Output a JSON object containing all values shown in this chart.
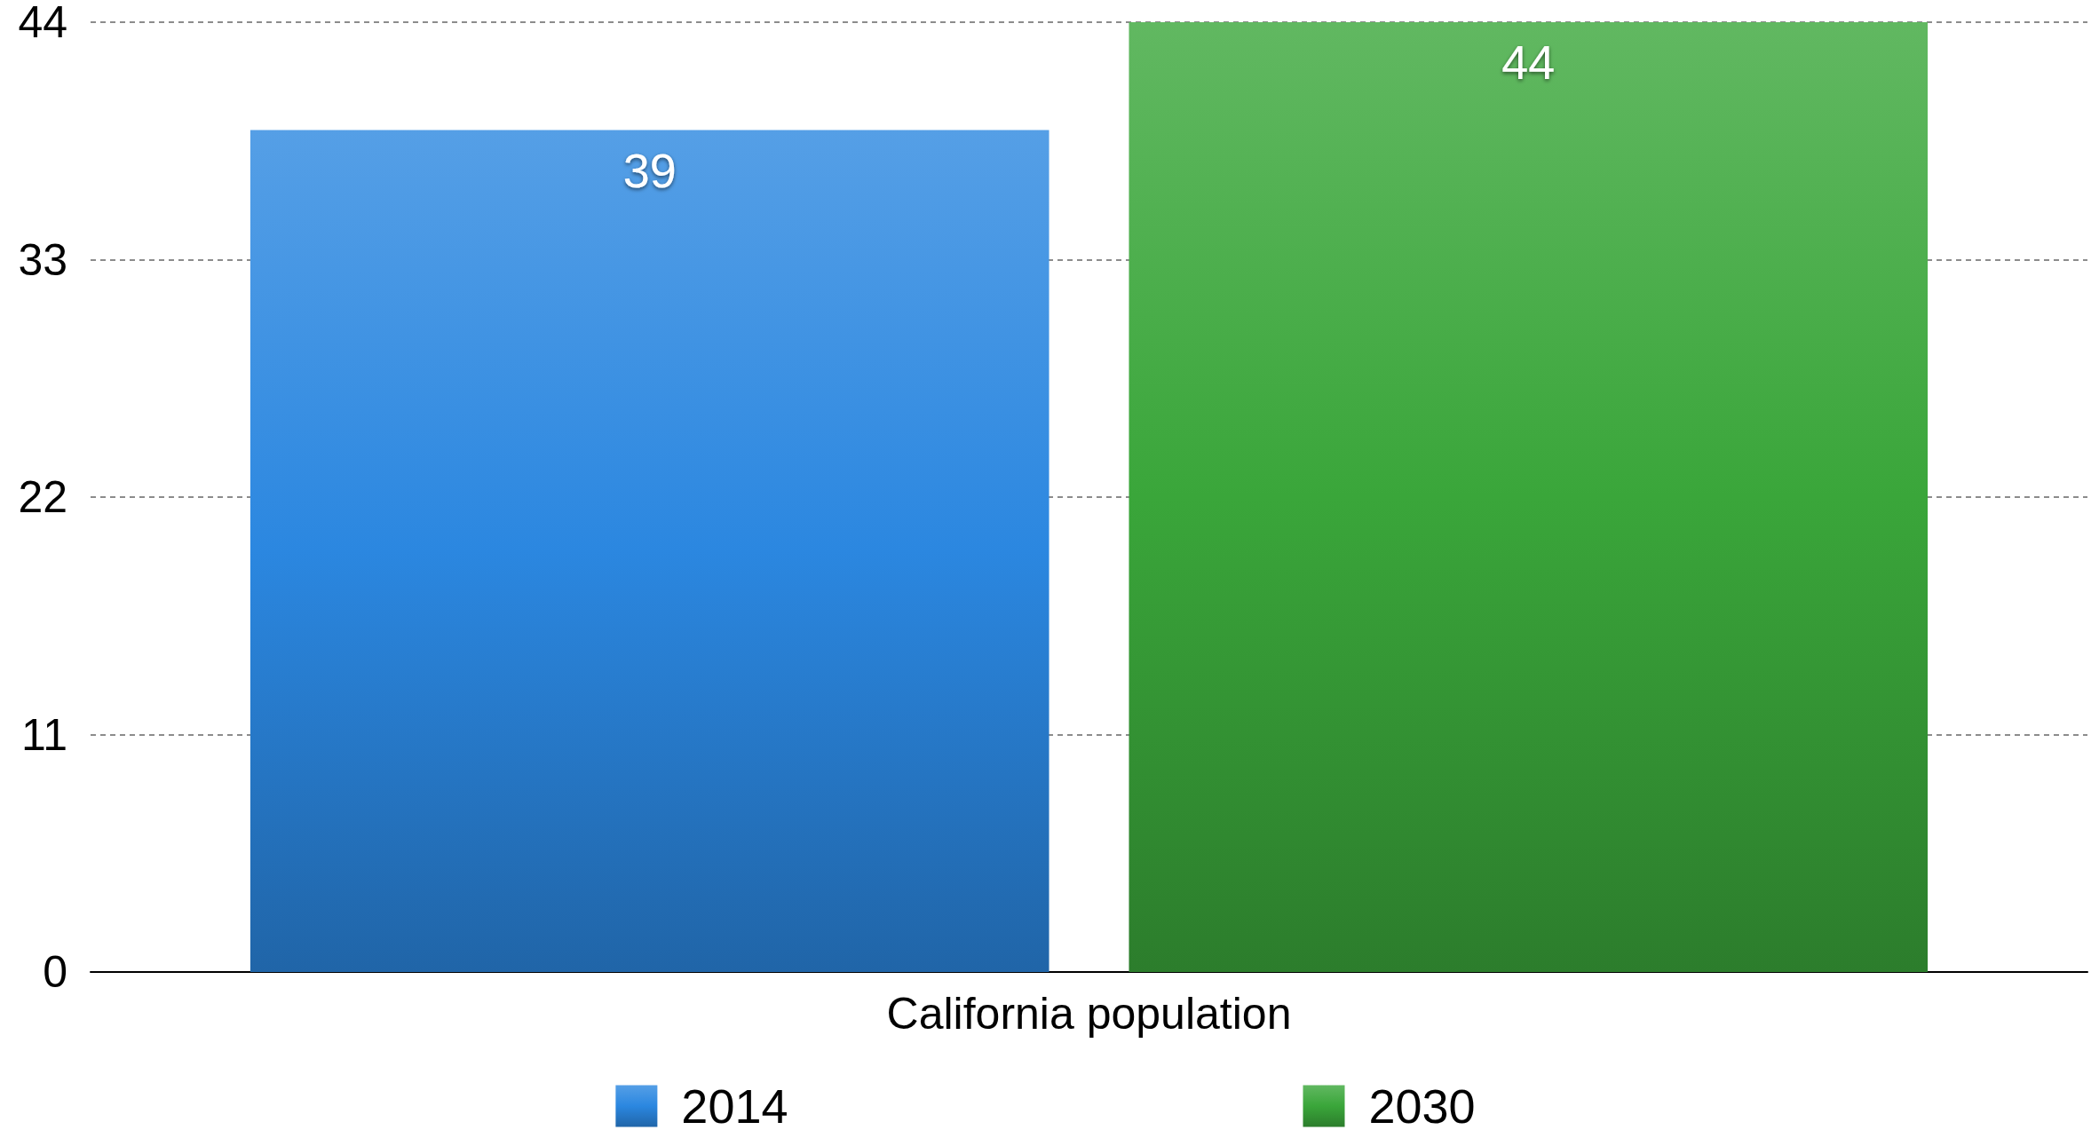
{
  "chart_data": {
    "type": "bar",
    "categories": [
      "California population"
    ],
    "series": [
      {
        "name": "2014",
        "color": "#2b87e0",
        "values": [
          39
        ]
      },
      {
        "name": "2030",
        "color": "#3aa63a",
        "values": [
          44
        ]
      }
    ],
    "ylim": [
      0,
      44
    ],
    "yticks": [
      0,
      11,
      22,
      33,
      44
    ],
    "grid": "y",
    "legend": "bottom",
    "data_labels": true
  }
}
